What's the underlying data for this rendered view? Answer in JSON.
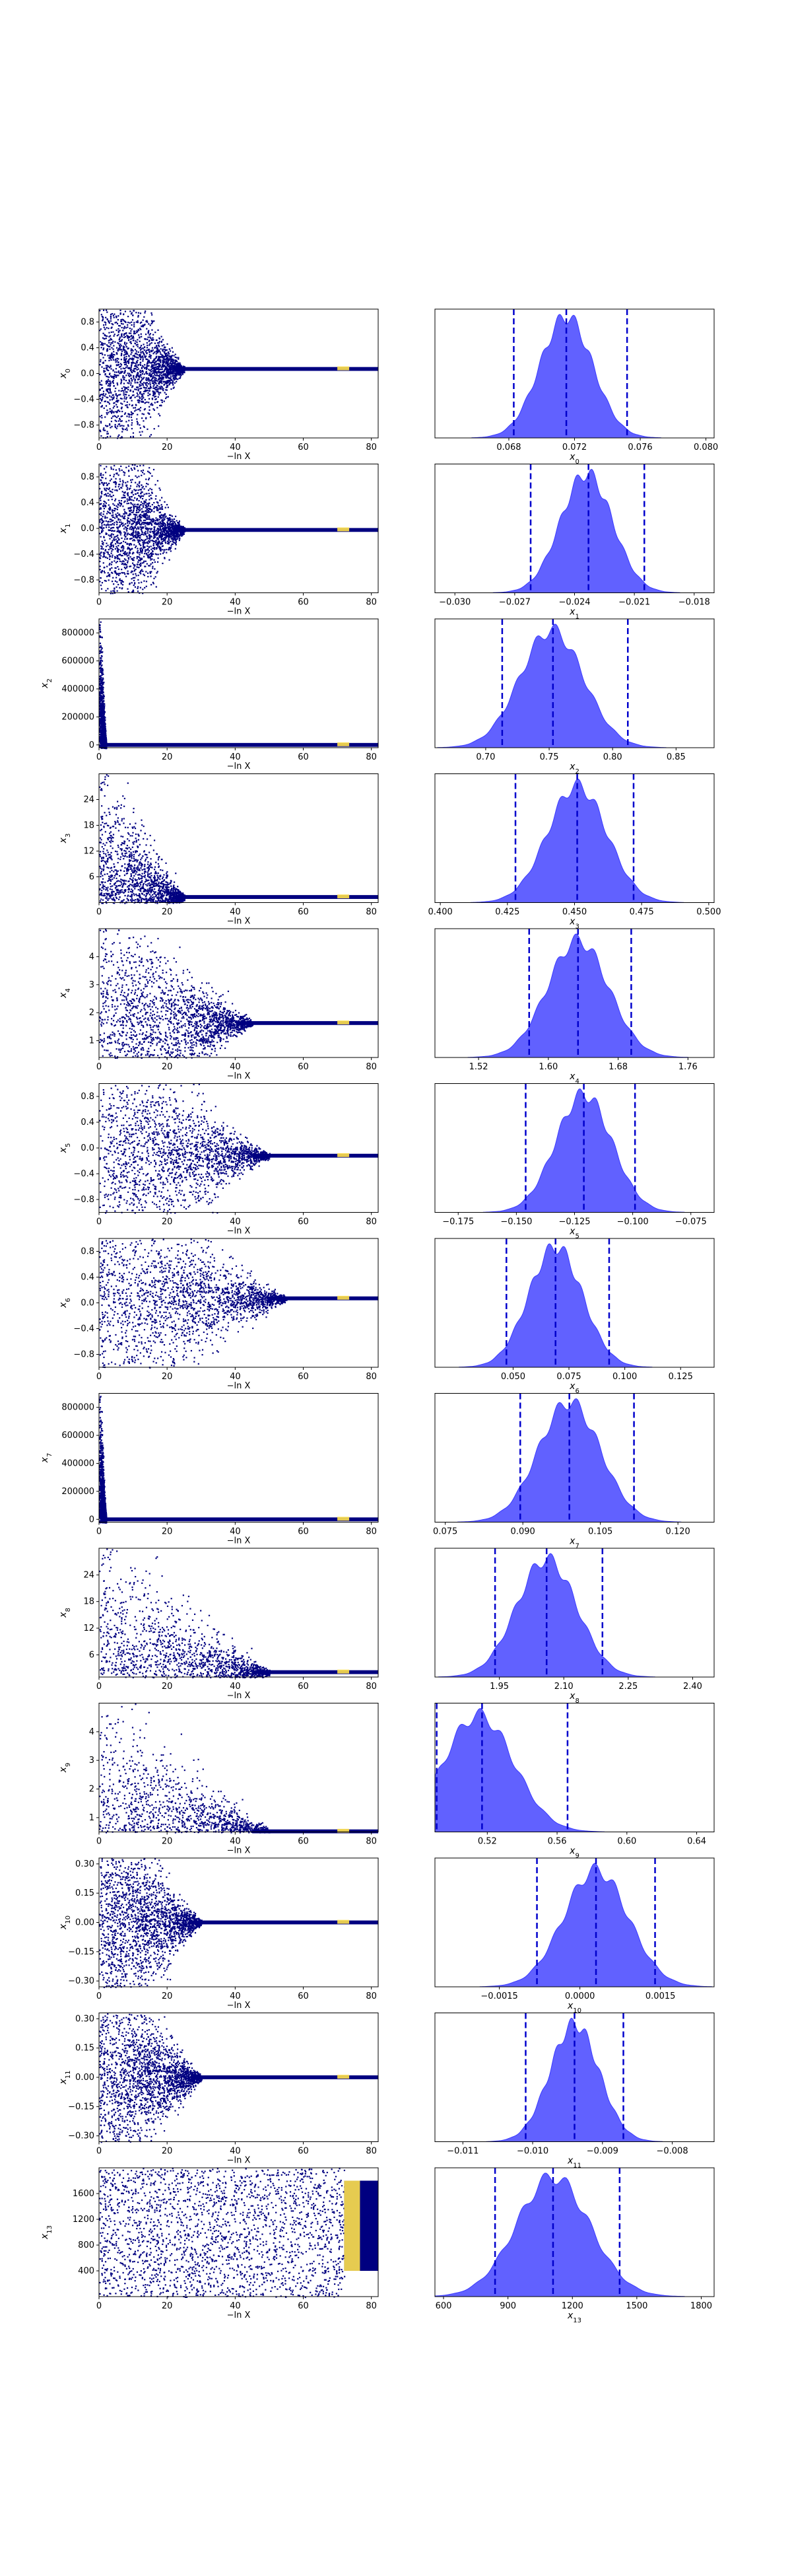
{
  "figure": {
    "description_type": "dynesty trace plot",
    "colors": {
      "trace_low": "#000080",
      "trace_high": "#ffe14a",
      "hist_fill": "#3a3aff",
      "quantile_line": "#0000cc",
      "axis": "#000000"
    }
  },
  "chart_data": [
    {
      "type": "trace_and_posterior",
      "row": 0,
      "trace": {
        "ylabel": "x_0",
        "sub": "0",
        "xlabel": "−ln X",
        "xlim": [
          0,
          82
        ],
        "xticks": [
          "0",
          "20",
          "40",
          "60",
          "80"
        ],
        "ylim": [
          -1,
          1
        ],
        "yticks": [
          {
            "v": 0.8,
            "l": "0.8"
          },
          {
            "v": 0.4,
            "l": "0.4"
          },
          {
            "v": 0,
            "l": "0.0"
          },
          {
            "v": -0.4,
            "l": "−0.4"
          },
          {
            "v": -0.8,
            "l": "−0.8"
          }
        ],
        "converged_value": 0.071,
        "noise_until": 25,
        "plateau": false
      },
      "posterior": {
        "xlabel": "x_0",
        "sub": "0",
        "xlim": [
          0.0635,
          0.0805
        ],
        "xticks": [
          {
            "v": 0.068,
            "l": "0.068"
          },
          {
            "v": 0.072,
            "l": "0.072"
          },
          {
            "v": 0.076,
            "l": "0.076"
          },
          {
            "v": 0.08,
            "l": "0.080"
          }
        ],
        "mean": 0.0715,
        "sd": 0.0016,
        "quantiles": [
          0.0683,
          0.0715,
          0.0752
        ]
      }
    },
    {
      "type": "trace_and_posterior",
      "row": 1,
      "trace": {
        "ylabel": "x_1",
        "sub": "1",
        "xlabel": "−ln X",
        "xlim": [
          0,
          82
        ],
        "xticks": [
          "0",
          "20",
          "40",
          "60",
          "80"
        ],
        "ylim": [
          -1,
          1
        ],
        "yticks": [
          {
            "v": 0.8,
            "l": "0.8"
          },
          {
            "v": 0.4,
            "l": "0.4"
          },
          {
            "v": 0,
            "l": "0.0"
          },
          {
            "v": -0.4,
            "l": "−0.4"
          },
          {
            "v": -0.8,
            "l": "−0.8"
          }
        ],
        "converged_value": -0.024,
        "noise_until": 25,
        "plateau": false
      },
      "posterior": {
        "xlabel": "x_1",
        "sub": "1",
        "xlim": [
          -0.031,
          -0.017
        ],
        "xticks": [
          {
            "v": -0.03,
            "l": "−0.030"
          },
          {
            "v": -0.027,
            "l": "−0.027"
          },
          {
            "v": -0.024,
            "l": "−0.024"
          },
          {
            "v": -0.021,
            "l": "−0.021"
          },
          {
            "v": -0.018,
            "l": "−0.018"
          }
        ],
        "mean": -0.0234,
        "sd": 0.0013,
        "quantiles": [
          -0.0262,
          -0.0233,
          -0.0205
        ]
      }
    },
    {
      "type": "trace_and_posterior",
      "row": 2,
      "trace": {
        "ylabel": "x_2",
        "sub": "2",
        "xlabel": "−ln X",
        "xlim": [
          0,
          82
        ],
        "xticks": [
          "0",
          "20",
          "40",
          "60",
          "80"
        ],
        "ylim": [
          -20000,
          900000
        ],
        "yticks": [
          {
            "v": 800000,
            "l": "800000"
          },
          {
            "v": 600000,
            "l": "600000"
          },
          {
            "v": 400000,
            "l": "400000"
          },
          {
            "v": 200000,
            "l": "200000"
          },
          {
            "v": 0,
            "l": "0"
          }
        ],
        "converged_value": 0,
        "noise_until": 2,
        "plateau": false
      },
      "posterior": {
        "xlabel": "x_2",
        "sub": "2",
        "xlim": [
          0.66,
          0.88
        ],
        "xticks": [
          {
            "v": 0.7,
            "l": "0.70"
          },
          {
            "v": 0.75,
            "l": "0.75"
          },
          {
            "v": 0.8,
            "l": "0.80"
          },
          {
            "v": 0.85,
            "l": "0.85"
          }
        ],
        "mean": 0.752,
        "sd": 0.025,
        "quantiles": [
          0.713,
          0.753,
          0.812
        ]
      }
    },
    {
      "type": "trace_and_posterior",
      "row": 3,
      "trace": {
        "ylabel": "x_3",
        "sub": "3",
        "xlabel": "−ln X",
        "xlim": [
          0,
          82
        ],
        "xticks": [
          "0",
          "20",
          "40",
          "60",
          "80"
        ],
        "ylim": [
          0,
          30
        ],
        "yticks": [
          {
            "v": 24,
            "l": "24"
          },
          {
            "v": 18,
            "l": "18"
          },
          {
            "v": 12,
            "l": "12"
          },
          {
            "v": 6,
            "l": "6"
          }
        ],
        "converged_value": 1.3,
        "noise_until": 25,
        "plateau": false
      },
      "posterior": {
        "xlabel": "x_3",
        "sub": "3",
        "xlim": [
          0.398,
          0.502
        ],
        "xticks": [
          {
            "v": 0.4,
            "l": "0.400"
          },
          {
            "v": 0.425,
            "l": "0.425"
          },
          {
            "v": 0.45,
            "l": "0.450"
          },
          {
            "v": 0.475,
            "l": "0.475"
          },
          {
            "v": 0.5,
            "l": "0.500"
          }
        ],
        "mean": 0.451,
        "sd": 0.011,
        "quantiles": [
          0.428,
          0.451,
          0.472
        ]
      }
    },
    {
      "type": "trace_and_posterior",
      "row": 4,
      "trace": {
        "ylabel": "x_4",
        "sub": "4",
        "xlabel": "−ln X",
        "xlim": [
          0,
          82
        ],
        "xticks": [
          "0",
          "20",
          "40",
          "60",
          "80"
        ],
        "ylim": [
          0.4,
          5
        ],
        "yticks": [
          {
            "v": 4,
            "l": "4"
          },
          {
            "v": 3,
            "l": "3"
          },
          {
            "v": 2,
            "l": "2"
          },
          {
            "v": 1,
            "l": "1"
          }
        ],
        "converged_value": 1.63,
        "noise_until": 45,
        "plateau": false
      },
      "posterior": {
        "xlabel": "x_4",
        "sub": "4",
        "xlim": [
          1.47,
          1.79
        ],
        "xticks": [
          {
            "v": 1.52,
            "l": "1.52"
          },
          {
            "v": 1.6,
            "l": "1.60"
          },
          {
            "v": 1.68,
            "l": "1.68"
          },
          {
            "v": 1.76,
            "l": "1.76"
          }
        ],
        "mean": 1.634,
        "sd": 0.035,
        "quantiles": [
          1.578,
          1.634,
          1.695
        ]
      }
    },
    {
      "type": "trace_and_posterior",
      "row": 5,
      "trace": {
        "ylabel": "x_5",
        "sub": "5",
        "xlabel": "−ln X",
        "xlim": [
          0,
          82
        ],
        "xticks": [
          "0",
          "20",
          "40",
          "60",
          "80"
        ],
        "ylim": [
          -1,
          1
        ],
        "yticks": [
          {
            "v": 0.8,
            "l": "0.8"
          },
          {
            "v": 0.4,
            "l": "0.4"
          },
          {
            "v": 0,
            "l": "0.0"
          },
          {
            "v": -0.4,
            "l": "−0.4"
          },
          {
            "v": -0.8,
            "l": "−0.8"
          }
        ],
        "converged_value": -0.12,
        "noise_until": 50,
        "plateau": false
      },
      "posterior": {
        "xlabel": "x_5",
        "sub": "5",
        "xlim": [
          -0.185,
          -0.065
        ],
        "xticks": [
          {
            "v": -0.175,
            "l": "−0.175"
          },
          {
            "v": -0.15,
            "l": "−0.150"
          },
          {
            "v": -0.125,
            "l": "−0.125"
          },
          {
            "v": -0.1,
            "l": "−0.100"
          },
          {
            "v": -0.075,
            "l": "−0.075"
          }
        ],
        "mean": -0.121,
        "sd": 0.012,
        "quantiles": [
          -0.146,
          -0.121,
          -0.099
        ]
      }
    },
    {
      "type": "trace_and_posterior",
      "row": 6,
      "trace": {
        "ylabel": "x_6",
        "sub": "6",
        "xlabel": "−ln X",
        "xlim": [
          0,
          82
        ],
        "xticks": [
          "0",
          "20",
          "40",
          "60",
          "80"
        ],
        "ylim": [
          -1,
          1
        ],
        "yticks": [
          {
            "v": 0.8,
            "l": "0.8"
          },
          {
            "v": 0.4,
            "l": "0.4"
          },
          {
            "v": 0,
            "l": "0.0"
          },
          {
            "v": -0.4,
            "l": "−0.4"
          },
          {
            "v": -0.8,
            "l": "−0.8"
          }
        ],
        "converged_value": 0.07,
        "noise_until": 55,
        "plateau": false
      },
      "posterior": {
        "xlabel": "x_6",
        "sub": "6",
        "xlim": [
          0.015,
          0.14
        ],
        "xticks": [
          {
            "v": 0.05,
            "l": "0.050"
          },
          {
            "v": 0.075,
            "l": "0.075"
          },
          {
            "v": 0.1,
            "l": "0.100"
          },
          {
            "v": 0.125,
            "l": "0.125"
          }
        ],
        "mean": 0.069,
        "sd": 0.012,
        "quantiles": [
          0.047,
          0.069,
          0.093
        ]
      }
    },
    {
      "type": "trace_and_posterior",
      "row": 7,
      "trace": {
        "ylabel": "x_7",
        "sub": "7",
        "xlabel": "−ln X",
        "xlim": [
          0,
          82
        ],
        "xticks": [
          "0",
          "20",
          "40",
          "60",
          "80"
        ],
        "ylim": [
          -20000,
          900000
        ],
        "yticks": [
          {
            "v": 800000,
            "l": "800000"
          },
          {
            "v": 600000,
            "l": "600000"
          },
          {
            "v": 400000,
            "l": "400000"
          },
          {
            "v": 200000,
            "l": "200000"
          },
          {
            "v": 0,
            "l": "0"
          }
        ],
        "converged_value": 0,
        "noise_until": 2,
        "plateau": false
      },
      "posterior": {
        "xlabel": "x_7",
        "sub": "7",
        "xlim": [
          0.073,
          0.127
        ],
        "xticks": [
          {
            "v": 0.075,
            "l": "0.075"
          },
          {
            "v": 0.09,
            "l": "0.090"
          },
          {
            "v": 0.105,
            "l": "0.105"
          },
          {
            "v": 0.12,
            "l": "0.120"
          }
        ],
        "mean": 0.099,
        "sd": 0.006,
        "quantiles": [
          0.0895,
          0.099,
          0.1115
        ]
      }
    },
    {
      "type": "trace_and_posterior",
      "row": 8,
      "trace": {
        "ylabel": "x_8",
        "sub": "8",
        "xlabel": "−ln X",
        "xlim": [
          0,
          82
        ],
        "xticks": [
          "0",
          "20",
          "40",
          "60",
          "80"
        ],
        "ylim": [
          1,
          30
        ],
        "yticks": [
          {
            "v": 24,
            "l": "24"
          },
          {
            "v": 18,
            "l": "18"
          },
          {
            "v": 12,
            "l": "12"
          },
          {
            "v": 6,
            "l": "6"
          }
        ],
        "converged_value": 2.1,
        "noise_until": 50,
        "plateau": false
      },
      "posterior": {
        "xlabel": "x_8",
        "sub": "8",
        "xlim": [
          1.8,
          2.45
        ],
        "xticks": [
          {
            "v": 1.95,
            "l": "1.95"
          },
          {
            "v": 2.1,
            "l": "2.10"
          },
          {
            "v": 2.25,
            "l": "2.25"
          },
          {
            "v": 2.4,
            "l": "2.40"
          }
        ],
        "mean": 2.06,
        "sd": 0.07,
        "quantiles": [
          1.94,
          2.06,
          2.19
        ]
      }
    },
    {
      "type": "trace_and_posterior",
      "row": 9,
      "trace": {
        "ylabel": "x_9",
        "sub": "9",
        "xlabel": "−ln X",
        "xlim": [
          0,
          82
        ],
        "xticks": [
          "0",
          "20",
          "40",
          "60",
          "80"
        ],
        "ylim": [
          0.5,
          5
        ],
        "yticks": [
          {
            "v": 4,
            "l": "4"
          },
          {
            "v": 3,
            "l": "3"
          },
          {
            "v": 2,
            "l": "2"
          },
          {
            "v": 1,
            "l": "1"
          }
        ],
        "converged_value": 0.52,
        "noise_until": 50,
        "plateau": false
      },
      "posterior": {
        "xlabel": "x_9",
        "sub": "9",
        "xlim": [
          0.49,
          0.65
        ],
        "xticks": [
          {
            "v": 0.52,
            "l": "0.52"
          },
          {
            "v": 0.56,
            "l": "0.56"
          },
          {
            "v": 0.6,
            "l": "0.60"
          },
          {
            "v": 0.64,
            "l": "0.64"
          }
        ],
        "mean": 0.515,
        "sd": 0.02,
        "quantiles": [
          0.491,
          0.517,
          0.566
        ]
      }
    },
    {
      "type": "trace_and_posterior",
      "row": 10,
      "trace": {
        "ylabel": "x_10",
        "sub": "10",
        "xlabel": "−ln X",
        "xlim": [
          0,
          82
        ],
        "xticks": [
          "0",
          "20",
          "40",
          "60",
          "80"
        ],
        "ylim": [
          -0.33,
          0.33
        ],
        "yticks": [
          {
            "v": 0.3,
            "l": "0.30"
          },
          {
            "v": 0.15,
            "l": "0.15"
          },
          {
            "v": 0,
            "l": "0.00"
          },
          {
            "v": -0.15,
            "l": "−0.15"
          },
          {
            "v": -0.3,
            "l": "−0.30"
          }
        ],
        "converged_value": 0,
        "noise_until": 30,
        "plateau": false
      },
      "posterior": {
        "xlabel": "x_10",
        "sub": "10",
        "xlim": [
          -0.0027,
          0.0025
        ],
        "xticks": [
          {
            "v": -0.0015,
            "l": "−0.0015"
          },
          {
            "v": 0,
            "l": "0.0000"
          },
          {
            "v": 0.0015,
            "l": "0.0015"
          }
        ],
        "mean": 0.0003,
        "sd": 0.0006,
        "quantiles": [
          -0.0008,
          0.0003,
          0.0014
        ]
      }
    },
    {
      "type": "trace_and_posterior",
      "row": 11,
      "trace": {
        "ylabel": "x_11",
        "sub": "11",
        "xlabel": "−ln X",
        "xlim": [
          0,
          82
        ],
        "xticks": [
          "0",
          "20",
          "40",
          "60",
          "80"
        ],
        "ylim": [
          -0.33,
          0.33
        ],
        "yticks": [
          {
            "v": 0.3,
            "l": "0.30"
          },
          {
            "v": 0.15,
            "l": "0.15"
          },
          {
            "v": 0,
            "l": "0.00"
          },
          {
            "v": -0.15,
            "l": "−0.15"
          },
          {
            "v": -0.3,
            "l": "−0.30"
          }
        ],
        "converged_value": 0,
        "noise_until": 30,
        "plateau": false
      },
      "posterior": {
        "xlabel": "x_11",
        "sub": "11",
        "xlim": [
          -0.0114,
          -0.0074
        ],
        "xticks": [
          {
            "v": -0.011,
            "l": "−0.011"
          },
          {
            "v": -0.01,
            "l": "−0.010"
          },
          {
            "v": -0.009,
            "l": "−0.009"
          },
          {
            "v": -0.008,
            "l": "−0.008"
          }
        ],
        "mean": -0.0094,
        "sd": 0.00035,
        "quantiles": [
          -0.0101,
          -0.0094,
          -0.0087
        ]
      }
    },
    {
      "type": "trace_and_posterior",
      "row": 12,
      "trace": {
        "ylabel": "x_13",
        "sub": "13",
        "xlabel": "−ln X",
        "xlim": [
          0,
          82
        ],
        "xticks": [
          "0",
          "20",
          "40",
          "60",
          "80"
        ],
        "ylim": [
          0,
          2000
        ],
        "yticks": [
          {
            "v": 1600,
            "l": "1600"
          },
          {
            "v": 1200,
            "l": "1200"
          },
          {
            "v": 800,
            "l": "800"
          },
          {
            "v": 400,
            "l": "400"
          }
        ],
        "converged_value": 1100,
        "noise_until": 72,
        "plateau": true
      },
      "posterior": {
        "xlabel": "x_13",
        "sub": "13",
        "xlim": [
          560,
          1860
        ],
        "xticks": [
          {
            "v": 600,
            "l": "600"
          },
          {
            "v": 900,
            "l": "900"
          },
          {
            "v": 1200,
            "l": "1200"
          },
          {
            "v": 1500,
            "l": "1500"
          },
          {
            "v": 1800,
            "l": "1800"
          }
        ],
        "mean": 1110,
        "sd": 170,
        "quantiles": [
          840,
          1110,
          1420
        ]
      }
    }
  ]
}
